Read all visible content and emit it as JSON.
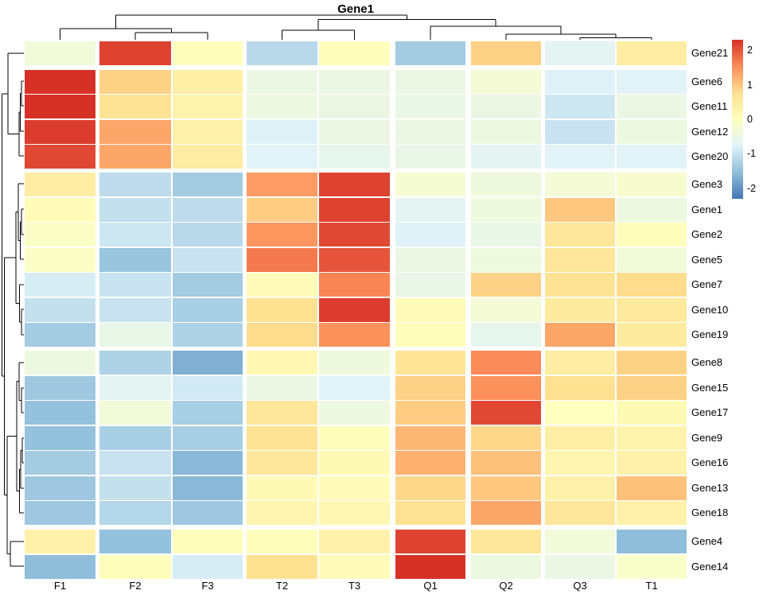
{
  "title": "Gene1",
  "chart_data": {
    "type": "heatmap",
    "title": "Gene1",
    "x_labels": [
      "F1",
      "F2",
      "F3",
      "T2",
      "T3",
      "Q1",
      "Q2",
      "Q3",
      "T1"
    ],
    "y_labels": [
      "Gene21",
      "Gene6",
      "Gene11",
      "Gene12",
      "Gene20",
      "Gene3",
      "Gene1",
      "Gene2",
      "Gene5",
      "Gene7",
      "Gene10",
      "Gene19",
      "Gene8",
      "Gene15",
      "Gene17",
      "Gene9",
      "Gene16",
      "Gene13",
      "Gene18",
      "Gene4",
      "Gene14"
    ],
    "values": [
      [
        -0.35,
        2.15,
        0.05,
        -1.15,
        0.05,
        -1.35,
        0.9,
        -0.7,
        0.45
      ],
      [
        2.3,
        0.9,
        0.4,
        -0.5,
        -0.5,
        -0.5,
        -0.3,
        -0.8,
        -0.75
      ],
      [
        2.3,
        0.7,
        0.3,
        -0.45,
        -0.48,
        -0.52,
        -0.48,
        -0.95,
        -0.5
      ],
      [
        2.2,
        1.3,
        0.35,
        -0.8,
        -0.5,
        -0.5,
        -0.45,
        -1.0,
        -0.45
      ],
      [
        2.1,
        1.3,
        0.45,
        -0.75,
        -0.6,
        -0.55,
        -0.7,
        -0.75,
        -0.75
      ],
      [
        0.45,
        -1.1,
        -1.35,
        1.4,
        2.15,
        -0.25,
        -0.4,
        -0.3,
        -0.2
      ],
      [
        0.1,
        -1.05,
        -1.1,
        0.95,
        2.15,
        -0.7,
        -0.4,
        1.0,
        -0.45
      ],
      [
        -0.1,
        -0.95,
        -1.15,
        1.45,
        2.1,
        -0.8,
        -0.55,
        0.6,
        0.05
      ],
      [
        -0.1,
        -1.45,
        -1.0,
        1.7,
        2.0,
        -0.5,
        -0.4,
        0.6,
        -0.35
      ],
      [
        -0.85,
        -1.0,
        -1.35,
        0.1,
        1.6,
        -0.55,
        0.9,
        0.7,
        0.8
      ],
      [
        -1.05,
        -1.0,
        -1.3,
        0.75,
        2.2,
        0.1,
        -0.3,
        0.5,
        0.55
      ],
      [
        -1.35,
        -0.55,
        -1.25,
        0.8,
        1.5,
        0.05,
        -0.6,
        1.3,
        0.5
      ],
      [
        -0.45,
        -1.25,
        -1.7,
        0.2,
        -0.4,
        0.65,
        1.55,
        0.45,
        0.9
      ],
      [
        -1.4,
        -0.7,
        -0.9,
        -0.5,
        -0.75,
        0.9,
        1.5,
        0.75,
        0.9
      ],
      [
        -1.5,
        -0.35,
        -1.3,
        0.6,
        -0.45,
        0.95,
        2.1,
        0.0,
        0.15
      ],
      [
        -1.5,
        -1.3,
        -1.3,
        0.7,
        0.05,
        1.15,
        0.85,
        0.4,
        0.3
      ],
      [
        -1.35,
        -1.0,
        -1.6,
        0.6,
        0.15,
        1.2,
        1.05,
        0.25,
        0.35
      ],
      [
        -1.4,
        -1.05,
        -1.6,
        0.15,
        0.1,
        0.85,
        1.0,
        0.35,
        1.05
      ],
      [
        -1.4,
        -1.2,
        -1.4,
        0.25,
        0.2,
        0.7,
        1.3,
        0.6,
        0.35
      ],
      [
        0.35,
        -1.5,
        0.05,
        0.05,
        0.35,
        2.15,
        0.6,
        -0.35,
        -1.55
      ],
      [
        -1.55,
        0.05,
        -0.85,
        0.75,
        0.1,
        2.3,
        -0.45,
        -0.5,
        -0.15
      ]
    ],
    "color_scale": {
      "palette": [
        "#4575b4",
        "#91bfdb",
        "#e0f3f8",
        "#ffffbf",
        "#fee090",
        "#fc8d59",
        "#d73027"
      ],
      "domain": [
        -2.3,
        2.3
      ]
    },
    "legend": {
      "ticks": [
        "2",
        "1",
        "0",
        "-1",
        "-2"
      ],
      "tick_values": [
        2,
        1,
        0,
        -1,
        -2
      ]
    },
    "col_dendrogram_segments": [
      [
        145.5,
        19,
        511.5,
        19
      ],
      [
        145.5,
        19,
        145.5,
        36
      ],
      [
        511.5,
        19,
        511.5,
        24.5
      ],
      [
        75.5,
        36,
        215.5,
        36
      ],
      [
        75.5,
        36,
        75.5,
        50
      ],
      [
        215.5,
        36,
        215.5,
        41
      ],
      [
        170,
        41,
        261,
        41
      ],
      [
        170,
        41,
        170,
        50
      ],
      [
        261,
        41,
        261,
        50
      ],
      [
        400,
        24.5,
        623,
        24.5
      ],
      [
        400,
        24.5,
        400,
        38
      ],
      [
        623,
        24.5,
        623,
        33
      ],
      [
        354.5,
        38,
        445.5,
        38
      ],
      [
        354.5,
        38,
        354.5,
        50
      ],
      [
        445.5,
        38,
        445.5,
        50
      ],
      [
        541,
        33,
        705,
        33
      ],
      [
        541,
        33,
        541,
        50
      ],
      [
        705,
        33,
        705,
        43
      ],
      [
        636,
        43,
        774,
        43
      ],
      [
        636,
        43,
        636,
        50
      ],
      [
        774,
        43,
        774,
        47.5
      ],
      [
        729,
        47.5,
        819,
        47.5
      ],
      [
        729,
        47.5,
        729,
        50
      ],
      [
        819,
        47.5,
        819,
        50
      ]
    ],
    "row_dendrogram_segments": [
      [
        27,
        102,
        27,
        133
      ],
      [
        27,
        102,
        30,
        102
      ],
      [
        27,
        133,
        30,
        133
      ],
      [
        25.5,
        117.5,
        25.5,
        165
      ],
      [
        25.5,
        117.5,
        27,
        117.5
      ],
      [
        25.5,
        165,
        30,
        165
      ],
      [
        24,
        141,
        24,
        196
      ],
      [
        24,
        141,
        25.5,
        141
      ],
      [
        24,
        196,
        30,
        196
      ],
      [
        10,
        67,
        10,
        168.5
      ],
      [
        10,
        67,
        30,
        67
      ],
      [
        10,
        168.5,
        24,
        168.5
      ],
      [
        27,
        263,
        27,
        295
      ],
      [
        27,
        263,
        30,
        263
      ],
      [
        27,
        295,
        30,
        295
      ],
      [
        25.5,
        279,
        25.5,
        326
      ],
      [
        25.5,
        279,
        27,
        279
      ],
      [
        25.5,
        326,
        30,
        326
      ],
      [
        23,
        231,
        23,
        302.5
      ],
      [
        23,
        231,
        30,
        231
      ],
      [
        23,
        302.5,
        25.5,
        302.5
      ],
      [
        27,
        389,
        27,
        421
      ],
      [
        27,
        389,
        30,
        389
      ],
      [
        27,
        421,
        30,
        421
      ],
      [
        24.5,
        358,
        24.5,
        405
      ],
      [
        24.5,
        358,
        30,
        358
      ],
      [
        24.5,
        405,
        27,
        405
      ],
      [
        20,
        266.5,
        20,
        381.5
      ],
      [
        20,
        266.5,
        23,
        266.5
      ],
      [
        20,
        381.5,
        24.5,
        381.5
      ],
      [
        27,
        488,
        27,
        519
      ],
      [
        27,
        488,
        30,
        488
      ],
      [
        27,
        519,
        30,
        519
      ],
      [
        24,
        456,
        24,
        503.5
      ],
      [
        24,
        456,
        30,
        456
      ],
      [
        24,
        503.5,
        27,
        503.5
      ],
      [
        28,
        551,
        28,
        582
      ],
      [
        28,
        551,
        30,
        551
      ],
      [
        28,
        582,
        30,
        582
      ],
      [
        26,
        566.5,
        26,
        614
      ],
      [
        26,
        566.5,
        28,
        566.5
      ],
      [
        26,
        614,
        30,
        614
      ],
      [
        24.5,
        590,
        24.5,
        645
      ],
      [
        24.5,
        590,
        26,
        590
      ],
      [
        24.5,
        645,
        30,
        645
      ],
      [
        21,
        479.5,
        21,
        617.5
      ],
      [
        21,
        479.5,
        24,
        479.5
      ],
      [
        21,
        617.5,
        24.5,
        617.5
      ],
      [
        13,
        681,
        13,
        712
      ],
      [
        13,
        681,
        30,
        681
      ],
      [
        13,
        712,
        30,
        712
      ],
      [
        9,
        548.5,
        9,
        696.5
      ],
      [
        9,
        548.5,
        21,
        548.5
      ],
      [
        9,
        696.5,
        13,
        696.5
      ],
      [
        5.5,
        324,
        5.5,
        622.5
      ],
      [
        5.5,
        324,
        20,
        324
      ],
      [
        5.5,
        622.5,
        9,
        622.5
      ],
      [
        2.5,
        117.75,
        2.5,
        473
      ],
      [
        2.5,
        117.75,
        10,
        117.75
      ],
      [
        2.5,
        473,
        5.5,
        473
      ]
    ]
  }
}
